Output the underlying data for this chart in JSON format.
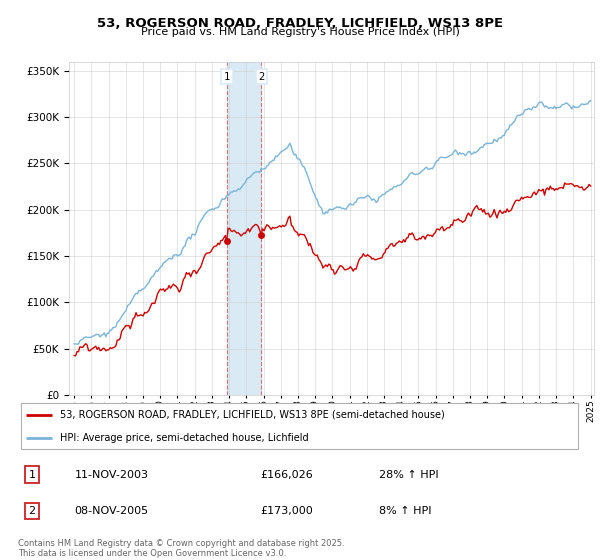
{
  "title": "53, ROGERSON ROAD, FRADLEY, LICHFIELD, WS13 8PE",
  "subtitle": "Price paid vs. HM Land Registry's House Price Index (HPI)",
  "legend_line1": "53, ROGERSON ROAD, FRADLEY, LICHFIELD, WS13 8PE (semi-detached house)",
  "legend_line2": "HPI: Average price, semi-detached house, Lichfield",
  "sale1_label": "1",
  "sale1_date": "11-NOV-2003",
  "sale1_price": "£166,026",
  "sale1_hpi": "28% ↑ HPI",
  "sale2_label": "2",
  "sale2_date": "08-NOV-2005",
  "sale2_price": "£173,000",
  "sale2_hpi": "8% ↑ HPI",
  "sale1_year": 2003.87,
  "sale2_year": 2005.87,
  "sale1_value": 166026,
  "sale2_value": 173000,
  "hpi_color": "#7ab4d8",
  "price_color": "#cc0000",
  "shading_color": "#daeaf5",
  "footer": "Contains HM Land Registry data © Crown copyright and database right 2025.\nThis data is licensed under the Open Government Licence v3.0.",
  "ylim_min": 0,
  "ylim_max": 360000,
  "start_year": 1995,
  "end_year": 2025
}
